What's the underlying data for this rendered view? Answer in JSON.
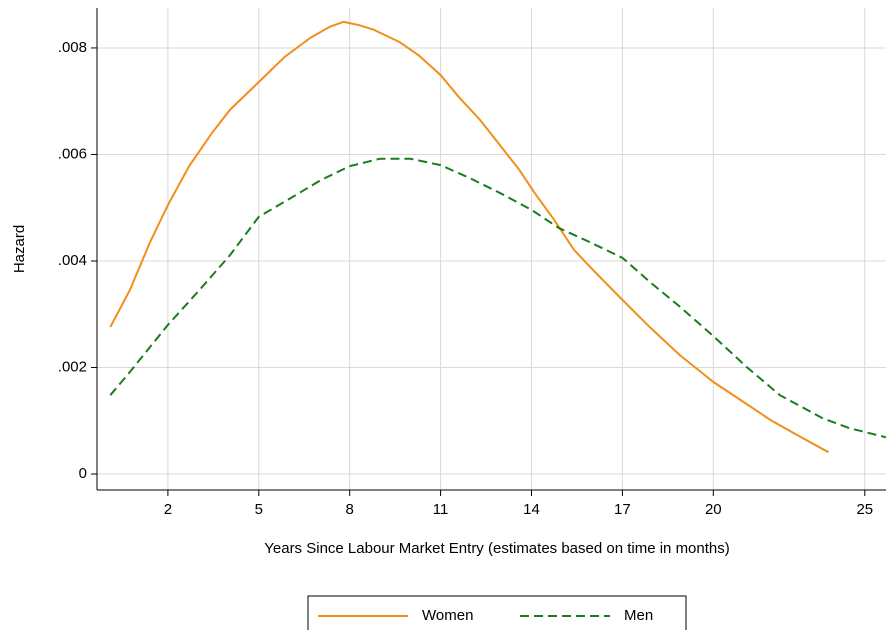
{
  "chart_data": {
    "type": "line",
    "x_label": "Years Since Labour Market Entry (estimates based on time in months)",
    "y_label": "Hazard",
    "xlim": [
      -0.34,
      25.7
    ],
    "ylim": [
      -0.0003,
      0.00875
    ],
    "xticks": [
      2,
      5,
      8,
      11,
      14,
      17,
      20,
      25
    ],
    "yticks": [
      0,
      {
        "value": 0.002,
        "label": ".002"
      },
      {
        "value": 0.004,
        "label": ".004"
      },
      {
        "value": 0.006,
        "label": ".006"
      },
      {
        "value": 0.008,
        "label": ".008"
      }
    ],
    "grid": true,
    "legend": "bottom",
    "series": [
      {
        "name": "Women",
        "color": "#f28e1c",
        "dash": "solid",
        "x": [
          0.1,
          0.75,
          1.4,
          2,
          2.7,
          3.45,
          4.05,
          5,
          5.85,
          6.7,
          7.35,
          7.8,
          8.3,
          8.8,
          9.65,
          10.3,
          11,
          11.6,
          12.3,
          12.95,
          13.6,
          14.1,
          14.75,
          15.4,
          16.1,
          17,
          17.9,
          18.9,
          20,
          20.9,
          21.9,
          22.9,
          23.8
        ],
        "values": [
          0.00276,
          0.00346,
          0.00434,
          0.00505,
          0.00578,
          0.0064,
          0.00684,
          0.00736,
          0.00783,
          0.00819,
          0.0084,
          0.00849,
          0.00843,
          0.00834,
          0.00811,
          0.00785,
          0.00749,
          0.00708,
          0.00665,
          0.00618,
          0.00571,
          0.00528,
          0.00477,
          0.00421,
          0.00379,
          0.00327,
          0.00276,
          0.00223,
          0.00173,
          0.00139,
          0.00101,
          0.00069,
          0.00041
        ]
      },
      {
        "name": "Men",
        "color": "#1a7d1a",
        "dash": "dashed",
        "x": [
          0.1,
          0.75,
          2,
          3.05,
          4.05,
          5,
          6.05,
          7.05,
          8,
          9,
          10,
          11,
          11.95,
          12.95,
          14,
          14.9,
          15.9,
          17,
          17.9,
          18.9,
          20,
          21.1,
          22.2,
          23.6,
          24.5,
          25.7
        ],
        "values": [
          0.00148,
          0.00192,
          0.0028,
          0.00346,
          0.00411,
          0.00483,
          0.00518,
          0.00552,
          0.00578,
          0.00592,
          0.00592,
          0.0058,
          0.00556,
          0.00528,
          0.00496,
          0.00462,
          0.00436,
          0.00406,
          0.00361,
          0.00314,
          0.00259,
          0.00201,
          0.00148,
          0.00105,
          0.00086,
          0.00069
        ]
      }
    ]
  }
}
